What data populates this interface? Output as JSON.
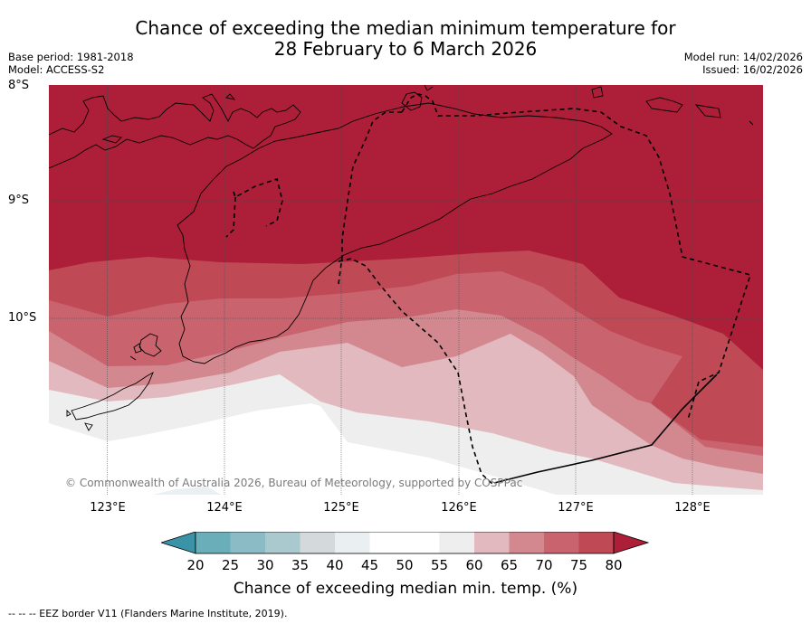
{
  "header": {
    "title_line1": "Chance of exceeding the median minimum temperature for",
    "title_line2": "28 February to 6 March 2026",
    "base_period": "Base period: 1981-2018",
    "model": "Model: ACCESS-S2",
    "model_run": "Model run: 14/02/2026",
    "issued": "Issued: 16/02/2026"
  },
  "map": {
    "lat_labels": [
      "8°S",
      "9°S",
      "10°S"
    ],
    "lon_labels": [
      "123°E",
      "124°E",
      "125°E",
      "126°E",
      "127°E",
      "128°E"
    ],
    "copyright": "© Commonwealth of Australia 2026, Bureau of Meteorology, supported by COSPPac"
  },
  "legend": {
    "ticks": [
      "20",
      "25",
      "30",
      "35",
      "40",
      "45",
      "50",
      "55",
      "60",
      "65",
      "70",
      "75",
      "80"
    ],
    "label": "Chance of exceeding median min. temp. (%)",
    "colors": [
      "#3a93a6",
      "#6aaeb9",
      "#8bbcc6",
      "#a9c9ce",
      "#d4d9db",
      "#eaeff1",
      "#ffffff",
      "#ffffff",
      "#eeeeee",
      "#e1b9bf",
      "#d3878f",
      "#c9636e",
      "#bf4a56",
      "#ad1f39"
    ]
  },
  "footnote": "--  --  -- EEZ border V11 (Flanders Marine Institute, 2019)."
}
